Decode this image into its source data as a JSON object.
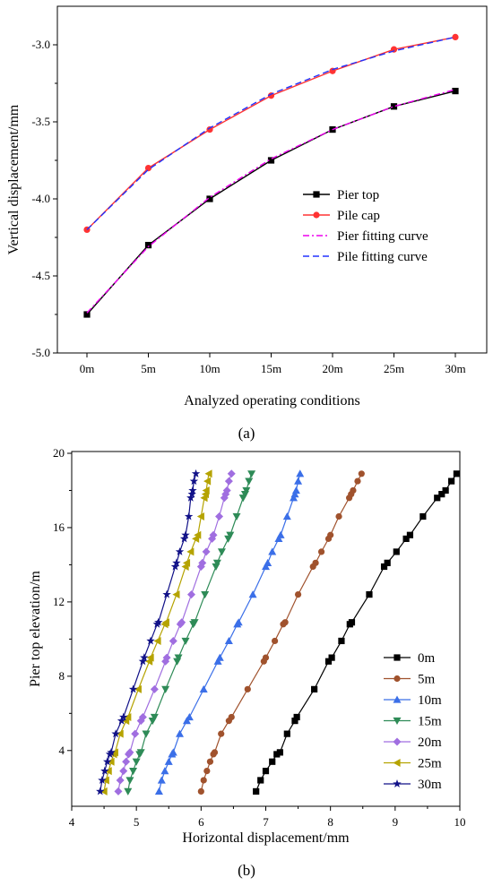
{
  "figure": {
    "panel_a_label": "(a)",
    "panel_b_label": "(b)"
  },
  "chart_data": [
    {
      "type": "line",
      "panel": "a",
      "xlabel": "Analyzed operating conditions",
      "ylabel": "Vertical displacement/mm",
      "categories": [
        "0m",
        "5m",
        "10m",
        "15m",
        "20m",
        "25m",
        "30m"
      ],
      "ylim": [
        -5.0,
        -2.75
      ],
      "yticks": [
        -5.0,
        -4.5,
        -4.0,
        -3.5,
        -3.0
      ],
      "ytick_labels": [
        "-5.0",
        "-4.5",
        "-4.0",
        "-3.5",
        "-3.0"
      ],
      "legend_position": "center-right",
      "series": [
        {
          "name": "Pier top",
          "values": [
            -4.75,
            -4.3,
            -4.0,
            -3.75,
            -3.55,
            -3.4,
            -3.3
          ],
          "color": "#000000",
          "marker": "square",
          "dash": ""
        },
        {
          "name": "Pile cap",
          "values": [
            -4.2,
            -3.8,
            -3.55,
            -3.33,
            -3.17,
            -3.03,
            -2.95
          ],
          "color": "#ff3333",
          "marker": "circle",
          "dash": ""
        },
        {
          "name": "Pier fitting curve",
          "values": [
            -4.74,
            -4.31,
            -3.99,
            -3.74,
            -3.55,
            -3.4,
            -3.29
          ],
          "color": "#ee00ee",
          "marker": "none",
          "dash": "7 3 2 3"
        },
        {
          "name": "Pile fitting curve",
          "values": [
            -4.2,
            -3.81,
            -3.54,
            -3.32,
            -3.16,
            -3.04,
            -2.95
          ],
          "color": "#2233ff",
          "marker": "none",
          "dash": "7 4"
        }
      ]
    },
    {
      "type": "scatter",
      "panel": "b",
      "xlabel": "Horizontal displacement/mm",
      "ylabel": "Pier top elevation/m",
      "xlim": [
        4,
        10
      ],
      "ylim": [
        1,
        20
      ],
      "xticks": [
        4,
        5,
        6,
        7,
        8,
        9,
        10
      ],
      "yticks": [
        4,
        8,
        12,
        16,
        20
      ],
      "legend_position": "bottom-right",
      "y": [
        1.8,
        2.4,
        2.9,
        3.4,
        3.8,
        3.9,
        4.9,
        5.6,
        5.8,
        7.3,
        8.8,
        9.0,
        9.9,
        10.8,
        10.9,
        12.4,
        13.9,
        14.1,
        14.7,
        15.4,
        15.6,
        16.6,
        17.6,
        17.8,
        18.0,
        18.5,
        18.9
      ],
      "series": [
        {
          "name": "0m",
          "color": "#000000",
          "marker": "square",
          "x": [
            6.85,
            6.92,
            7.0,
            7.1,
            7.17,
            7.22,
            7.33,
            7.45,
            7.48,
            7.75,
            7.97,
            8.02,
            8.17,
            8.3,
            8.33,
            8.6,
            8.83,
            8.88,
            9.02,
            9.17,
            9.23,
            9.43,
            9.65,
            9.72,
            9.78,
            9.87,
            9.95
          ]
        },
        {
          "name": "5m",
          "color": "#a0522d",
          "marker": "circle",
          "x": [
            6.0,
            6.04,
            6.09,
            6.14,
            6.19,
            6.21,
            6.31,
            6.43,
            6.47,
            6.72,
            6.97,
            7.0,
            7.14,
            7.27,
            7.3,
            7.5,
            7.73,
            7.77,
            7.86,
            7.97,
            8.0,
            8.13,
            8.29,
            8.32,
            8.35,
            8.42,
            8.48
          ]
        },
        {
          "name": "10m",
          "color": "#3b6fe8",
          "marker": "triangle-up",
          "x": [
            5.35,
            5.39,
            5.44,
            5.5,
            5.55,
            5.57,
            5.67,
            5.78,
            5.82,
            6.04,
            6.26,
            6.29,
            6.43,
            6.56,
            6.58,
            6.8,
            7.0,
            7.03,
            7.1,
            7.2,
            7.23,
            7.33,
            7.43,
            7.45,
            7.47,
            7.5,
            7.53
          ]
        },
        {
          "name": "15m",
          "color": "#2e8b57",
          "marker": "triangle-down",
          "x": [
            4.87,
            4.9,
            4.95,
            5.0,
            5.05,
            5.07,
            5.15,
            5.25,
            5.28,
            5.45,
            5.63,
            5.65,
            5.76,
            5.88,
            5.9,
            6.06,
            6.23,
            6.25,
            6.32,
            6.42,
            6.45,
            6.55,
            6.65,
            6.68,
            6.7,
            6.74,
            6.78
          ]
        },
        {
          "name": "20m",
          "color": "#a06ee0",
          "marker": "diamond",
          "x": [
            4.72,
            4.75,
            4.8,
            4.84,
            4.88,
            4.9,
            4.98,
            5.07,
            5.1,
            5.28,
            5.45,
            5.47,
            5.57,
            5.68,
            5.7,
            5.85,
            6.0,
            6.02,
            6.08,
            6.17,
            6.19,
            6.28,
            6.36,
            6.38,
            6.4,
            6.43,
            6.47
          ]
        },
        {
          "name": "25m",
          "color": "#b5a300",
          "marker": "triangle-left",
          "x": [
            4.5,
            4.53,
            4.57,
            4.61,
            4.65,
            4.67,
            4.75,
            4.84,
            4.87,
            5.03,
            5.2,
            5.22,
            5.33,
            5.44,
            5.46,
            5.62,
            5.76,
            5.78,
            5.84,
            5.92,
            5.95,
            6.0,
            6.05,
            6.07,
            6.08,
            6.1,
            6.12
          ]
        },
        {
          "name": "30m",
          "color": "#111188",
          "marker": "star",
          "x": [
            4.44,
            4.47,
            4.51,
            4.55,
            4.59,
            4.61,
            4.68,
            4.77,
            4.8,
            4.95,
            5.1,
            5.12,
            5.22,
            5.32,
            5.34,
            5.47,
            5.6,
            5.62,
            5.67,
            5.74,
            5.76,
            5.81,
            5.84,
            5.86,
            5.87,
            5.89,
            5.92
          ]
        }
      ]
    }
  ]
}
